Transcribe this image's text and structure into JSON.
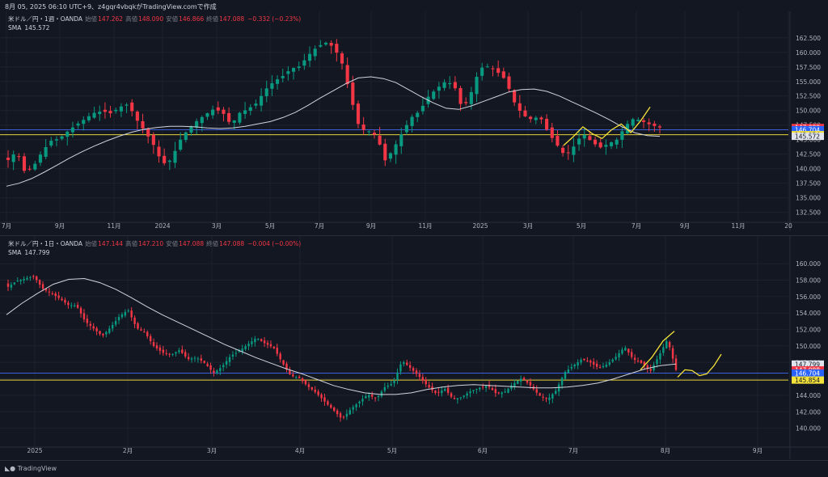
{
  "caption": "8月 05, 2025 06:10 UTC+9、z4gqr4vbqkがTradingView.comで作成",
  "footer": {
    "brand": "TradingView",
    "logo_icon": "tradingview-logo-icon"
  },
  "colors": {
    "up": "#089981",
    "down": "#f23645",
    "sma": "#d1d4dc",
    "hline_yellow": "#e8d33a",
    "hline_blue": "#3d5fd9",
    "projection": "#f6e33a",
    "grid": "#1e222d",
    "axis_text": "#b2b5be"
  },
  "weekly": {
    "legend": {
      "symbol": "米ドル／円・1週・OANDA",
      "open_label": "始値",
      "open": "147.262",
      "high_label": "高値",
      "high": "148.090",
      "low_label": "安値",
      "low": "146.866",
      "close_label": "終値",
      "close": "147.088",
      "change": "−0.332 (−0.23%)"
    },
    "sma": {
      "label": "SMA",
      "value": "145.572"
    },
    "price_tags": [
      {
        "text": "147.088",
        "sub": "4d 0h",
        "bg": "#f23645",
        "fg": "#ffffff",
        "price": 147.088
      },
      {
        "text": "146.704",
        "bg": "#2962ff",
        "fg": "#ffffff",
        "price": 146.704
      },
      {
        "text": "145.854",
        "bg": "#f6e33a",
        "fg": "#131722",
        "price": 145.854
      },
      {
        "text": "145.572",
        "bg": "#e0e3eb",
        "fg": "#131722",
        "price": 145.572
      }
    ]
  },
  "daily": {
    "legend": {
      "symbol": "米ドル／円・1日・OANDA",
      "open_label": "始値",
      "open": "147.144",
      "high_label": "高値",
      "high": "147.210",
      "low_label": "安値",
      "low": "147.088",
      "close_label": "終値",
      "close": "147.088",
      "change": "−0.004 (−0.00%)"
    },
    "sma": {
      "label": "SMA",
      "value": "147.799"
    },
    "price_tags": [
      {
        "text": "147.799",
        "bg": "#e0e3eb",
        "fg": "#131722",
        "price": 147.799
      },
      {
        "text": "147.088",
        "sub": "23:49:49",
        "bg": "#f23645",
        "fg": "#ffffff",
        "price": 147.088
      },
      {
        "text": "146.704",
        "bg": "#2962ff",
        "fg": "#ffffff",
        "price": 146.704
      },
      {
        "text": "145.854",
        "bg": "#f6e33a",
        "fg": "#131722",
        "price": 145.854
      }
    ]
  },
  "chart_data": [
    {
      "type": "candlestick",
      "instrument": "USDJPY",
      "timeframe": "1W",
      "ylim": [
        131.2,
        164.0
      ],
      "y_ticks": [
        132.5,
        135.0,
        137.5,
        140.0,
        142.5,
        145.0,
        147.5,
        150.0,
        152.5,
        155.0,
        157.5,
        160.0,
        162.5
      ],
      "x_labels": [
        "7月",
        "9月",
        "11月",
        "2024",
        "3月",
        "5月",
        "7月",
        "9月",
        "11月",
        "2025",
        "3月",
        "5月",
        "7月",
        "9月",
        "11月",
        "20"
      ],
      "horizontal_lines": [
        {
          "price": 146.704,
          "color": "blue"
        },
        {
          "price": 145.854,
          "color": "yellow"
        }
      ],
      "sma_last": 145.572,
      "close_path": [
        141.5,
        143.0,
        139.2,
        140.5,
        143.0,
        144.8,
        145.2,
        146.5,
        147.6,
        148.6,
        149.6,
        149.9,
        149.5,
        150.6,
        151.1,
        148.4,
        146.3,
        144.0,
        140.8,
        141.5,
        144.8,
        146.8,
        148.2,
        149.3,
        150.3,
        149.7,
        147.5,
        149.6,
        150.3,
        151.3,
        153.6,
        155.0,
        155.9,
        157.2,
        157.6,
        159.5,
        160.9,
        161.7,
        160.9,
        157.9,
        152.0,
        146.8,
        146.5,
        145.6,
        141.3,
        143.6,
        146.3,
        148.8,
        149.9,
        152.4,
        153.8,
        155.0,
        154.4,
        150.1,
        153.1,
        157.3,
        157.6,
        156.7,
        155.3,
        151.5,
        149.2,
        148.5,
        149.0,
        146.2,
        144.1,
        142.1,
        143.9,
        146.1,
        144.7,
        143.6,
        144.3,
        145.0,
        147.4,
        148.7,
        148.1,
        147.5,
        147.088
      ],
      "sma_path": [
        137.0,
        137.5,
        138.3,
        139.4,
        140.6,
        141.8,
        142.9,
        143.9,
        144.8,
        145.6,
        146.3,
        146.8,
        147.1,
        147.3,
        147.3,
        147.2,
        147.0,
        146.9,
        147.0,
        147.3,
        147.7,
        148.1,
        148.8,
        149.7,
        150.9,
        152.2,
        153.4,
        154.6,
        155.6,
        155.8,
        155.5,
        154.8,
        153.6,
        152.4,
        151.3,
        150.4,
        150.2,
        150.8,
        151.6,
        152.4,
        153.2,
        153.6,
        153.7,
        153.3,
        152.5,
        151.5,
        150.5,
        149.5,
        148.4,
        147.2,
        146.2,
        145.7,
        145.572
      ],
      "projection_yellow": [
        [
          144.0,
          145.5,
          147.2,
          146.0,
          145.2,
          146.7,
          147.7,
          146.2,
          148.2,
          150.6
        ]
      ]
    },
    {
      "type": "candlestick",
      "instrument": "USDJPY",
      "timeframe": "1D",
      "ylim": [
        138.0,
        161.2
      ],
      "y_ticks": [
        140.0,
        142.0,
        144.0,
        146.0,
        148.0,
        150.0,
        152.0,
        154.0,
        156.0,
        158.0,
        160.0
      ],
      "x_labels": [
        "2025",
        "2月",
        "3月",
        "4月",
        "5月",
        "6月",
        "7月",
        "8月",
        "9月"
      ],
      "horizontal_lines": [
        {
          "price": 146.704,
          "color": "blue"
        },
        {
          "price": 145.854,
          "color": "yellow"
        }
      ],
      "sma_last": 147.799,
      "close_path": [
        157.2,
        157.9,
        158.2,
        158.5,
        157.0,
        156.4,
        155.8,
        155.0,
        154.9,
        153.0,
        152.1,
        151.2,
        152.3,
        153.6,
        154.4,
        152.2,
        151.6,
        150.0,
        149.2,
        148.9,
        149.5,
        148.4,
        148.6,
        147.9,
        146.7,
        147.5,
        148.8,
        149.4,
        150.2,
        151.0,
        150.3,
        149.8,
        148.0,
        146.4,
        146.1,
        145.1,
        144.3,
        143.2,
        142.2,
        141.1,
        142.3,
        143.2,
        144.1,
        143.6,
        145.0,
        145.5,
        148.2,
        147.3,
        146.3,
        145.1,
        144.2,
        144.8,
        143.5,
        143.8,
        144.5,
        144.9,
        145.2,
        144.2,
        144.4,
        145.4,
        146.1,
        145.2,
        144.0,
        143.5,
        144.6,
        146.8,
        147.6,
        148.4,
        148.0,
        147.3,
        147.8,
        148.7,
        149.9,
        148.4,
        147.9,
        146.9,
        148.8,
        150.8,
        147.088
      ],
      "sma_path": [
        153.8,
        155.2,
        156.4,
        157.5,
        158.1,
        158.2,
        157.7,
        156.9,
        155.9,
        154.8,
        153.8,
        152.9,
        152.0,
        151.1,
        150.2,
        149.4,
        148.6,
        147.9,
        147.2,
        146.6,
        145.9,
        145.2,
        144.7,
        144.3,
        144.1,
        144.1,
        144.3,
        144.7,
        145.0,
        145.2,
        145.3,
        145.2,
        145.1,
        145.0,
        144.9,
        144.9,
        145.0,
        145.2,
        145.5,
        146.0,
        146.6,
        147.2,
        147.6,
        147.799
      ],
      "projection_yellow": [
        [
          147.1,
          148.6,
          150.6,
          151.8
        ],
        [
          146.2,
          147.1,
          147.0,
          146.4,
          146.6,
          147.6,
          149.0
        ]
      ]
    }
  ]
}
